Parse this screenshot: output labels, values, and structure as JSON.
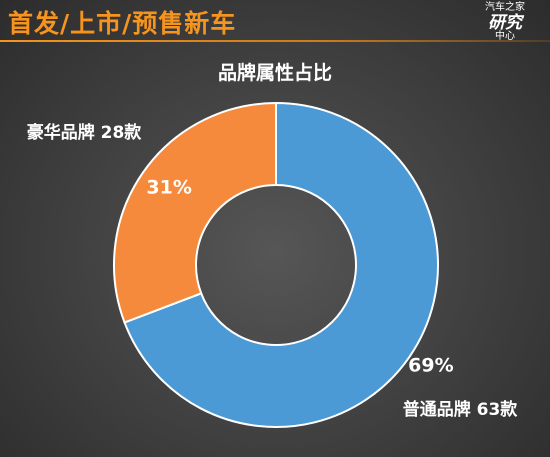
{
  "header": {
    "title": "首发/上市/预售新车",
    "logo_top": "汽车之家",
    "logo_main": "研究",
    "logo_bottom": "中心",
    "accent_color": "#f7941d"
  },
  "chart_data": {
    "type": "pie",
    "title": "品牌属性占比",
    "donut": true,
    "categories": [
      "普通品牌",
      "豪华品牌"
    ],
    "values": [
      63,
      28
    ],
    "percent_labels": [
      "69%",
      "31%"
    ],
    "outside_labels": [
      "普通品牌 63款",
      "豪华品牌 28款"
    ],
    "colors": [
      "#4b9ad6",
      "#f58a3d"
    ],
    "legend": "outside-slices"
  }
}
